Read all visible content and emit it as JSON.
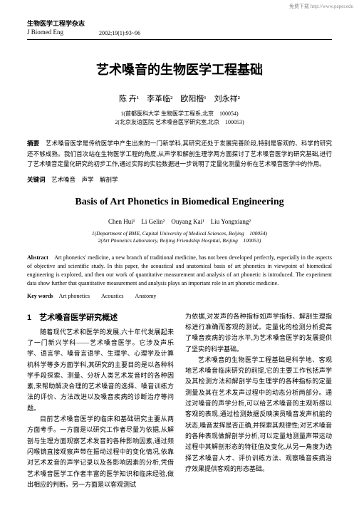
{
  "top_url": "免费下载 http://www.paper.edu",
  "journal": {
    "cn": "生物医学工程学杂志",
    "en": "J Biomed Eng",
    "issue": "2002;19(1):93~96"
  },
  "title_cn": "艺术嗓音的生物医学工程基础",
  "authors_cn": "陈 卉¹　李革临²　欧阳楷¹　刘永祥²",
  "affil_cn_1": "1(首都医科大学 生物医学工程系,北京　100054)",
  "affil_cn_2": "2(北京友谊医院 艺术嗓音医学研究室,北京　100053)",
  "abstract_cn_label": "摘要",
  "abstract_cn_text": "　艺术嗓音医学是传统医学中产生出来的一门新学科,其研究还处于发展完善阶段,特别是客观的、科学的研究还不够成熟。我们首次站在生物医学工程的角度,从声学和解剖生理学两方面探讨了艺术嗓音医学的研究基础,进行了艺术嗓音定量化研究的初步工作,通过实际的实验数据进一步说明了定量化测量分析在艺术嗓音医学中的作用。",
  "keywords_cn_label": "关键词",
  "keywords_cn_text": "　艺术嗓音　声学　解剖学",
  "title_en": "Basis of Art Phonetics in Biomedical Engineering",
  "authors_en": "Chen Hui¹　Li Gelin²　Ouyang Kai¹　Liu Yongxiang²",
  "affil_en_1": "1(Department of BME, Capital University of Medical Sciences, Beijing　100054)",
  "affil_en_2": "2(Art Phonetics Laboratory, Beijing Friendship Hospital, Beijing　100053)",
  "abstract_en_label": "Abstract",
  "abstract_en_text": "　Art phonetics' medicine, a new branch of traditional medicine, has not been developed perfectly, especially in the aspects of objective and scientific study. In this paper, the acoustical and anatomical basis of art phonetics in viewpoint of biomedical engineering is explored, and then our work of quantitative measurement and analysis of art phonetic is introduced. The experiment data show further that quantitative measurement and analysis plays an important role in art phonetic medicine.",
  "keywords_en_label": "Key words",
  "keywords_en_text": "　Art phonetics　　Acoustics　　Anatomy",
  "section_number": "1",
  "section_title": "艺术嗓音医学研究概述",
  "col1_p1": "随着现代艺术和医学的发展,六十年代发展起来了一门新兴学科——艺术嗓音医学。它涉及声乐学、语言学、嗓音言语学、生理学、心理学及计算机科学等多方面学科,其研究的主要目的是以各种科学手段探索、测量、分析人类艺术发音时的各种因素,来帮助解决合理的艺术嗓音的选择、嗓音训练方法的评价、方法改进以及嗓音疾病的诊断治疗等问题。",
  "col1_p2": "目前艺术嗓音医学的临床和基础研究主要从两方面考手。一方面是以研究工作者尽量为依据,从解剖与生理方面观察艺术发音的各种影响因素,通过频闪喉镜直接观察声带在振动过程中的变化情况,依靠对艺术发音的声学记录以及各影响因素的分析,凭借艺术嗓音医学工作者丰富的医学知识和临床经验,做出相应的判断。另一方面是以客观测试",
  "col2_p1": "为依据,对发声的各种指标如声学指标、解剖生理指标进行准确而客观的测试。定量化的检测分析提高了嗓音疾病的诊治水平,为艺术嗓音医学的发展提供了坚实的科学基础。",
  "col2_p2": "艺术嗓音的生物医学工程基础是科学地、客观地艺术嗓音临床研究的前提,它的主要工作包括声学及其检测方法和解剖学与生理学的各种指标的定量测量及其在艺术发声过程中的动态分析两部分。通过对嗓音的声学分析,可以给艺术嗓音的主观听感以客观的表现,通过检测数据反映演员嗓音发声机能的状态,嗓音发挥是否正确,并探索其规律性;对艺术嗓音的各种表现做解剖学分析,可以定量地测量声带运动过程中其解剖形态的特征值及变化,从另一角度为选择艺术嗓音人才、评价训练方法、观察嗓音疾病治疗效果提供客观的形态基础。"
}
